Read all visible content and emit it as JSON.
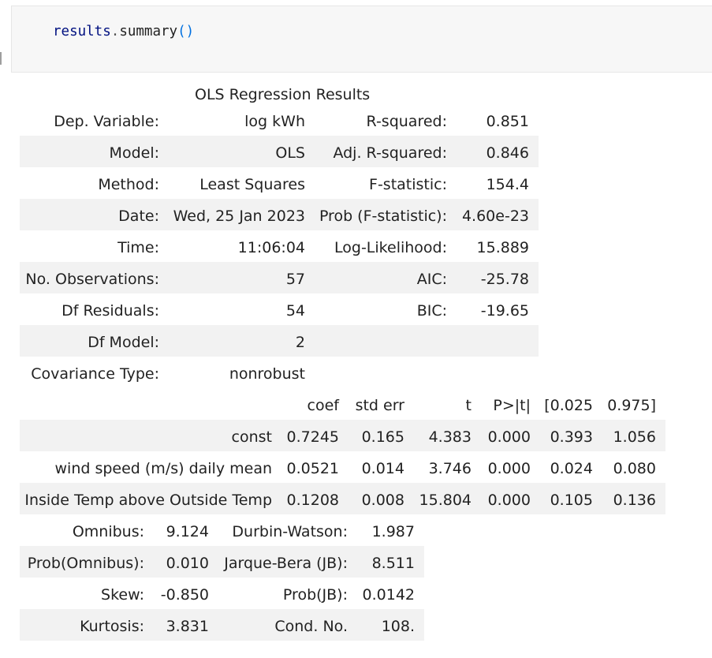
{
  "code_cell": {
    "object": "results",
    "dot": ".",
    "method": "summary",
    "parens": "()"
  },
  "header": {
    "title": "OLS Regression Results"
  },
  "summary": {
    "rows": [
      {
        "label": "Dep. Variable:",
        "value": "log kWh",
        "stat_label": "R-squared:",
        "stat_value": "0.851"
      },
      {
        "label": "Model:",
        "value": "OLS",
        "stat_label": "Adj. R-squared:",
        "stat_value": "0.846"
      },
      {
        "label": "Method:",
        "value": "Least Squares",
        "stat_label": "F-statistic:",
        "stat_value": "154.4"
      },
      {
        "label": "Date:",
        "value": "Wed, 25 Jan 2023",
        "stat_label": "Prob (F-statistic):",
        "stat_value": "4.60e-23"
      },
      {
        "label": "Time:",
        "value": "11:06:04",
        "stat_label": "Log-Likelihood:",
        "stat_value": "15.889"
      },
      {
        "label": "No. Observations:",
        "value": "57",
        "stat_label": "AIC:",
        "stat_value": "-25.78"
      },
      {
        "label": "Df Residuals:",
        "value": "54",
        "stat_label": "BIC:",
        "stat_value": "-19.65"
      },
      {
        "label": "Df Model:",
        "value": "2",
        "stat_label": "",
        "stat_value": ""
      },
      {
        "label": "Covariance Type:",
        "value": "nonrobust",
        "stat_label": "",
        "stat_value": ""
      }
    ]
  },
  "coef_table": {
    "headers": [
      "coef",
      "std err",
      "t",
      "P>|t|",
      "[0.025",
      "0.975]"
    ],
    "rows": [
      {
        "name": "const",
        "values": [
          "0.7245",
          "0.165",
          "4.383",
          "0.000",
          "0.393",
          "1.056"
        ]
      },
      {
        "name": "wind speed (m/s) daily mean",
        "values": [
          "0.0521",
          "0.014",
          "3.746",
          "0.000",
          "0.024",
          "0.080"
        ]
      },
      {
        "name": "Inside Temp above Outside Temp",
        "values": [
          "0.1208",
          "0.008",
          "15.804",
          "0.000",
          "0.105",
          "0.136"
        ]
      }
    ]
  },
  "diagnostics": {
    "rows": [
      {
        "label": "Omnibus:",
        "value": "9.124",
        "stat_label": "Durbin-Watson:",
        "stat_value": "1.987"
      },
      {
        "label": "Prob(Omnibus):",
        "value": "0.010",
        "stat_label": "Jarque-Bera (JB):",
        "stat_value": "8.511"
      },
      {
        "label": "Skew:",
        "value": "-0.850",
        "stat_label": "Prob(JB):",
        "stat_value": "0.0142"
      },
      {
        "label": "Kurtosis:",
        "value": "3.831",
        "stat_label": "Cond. No.",
        "stat_value": "108."
      }
    ]
  },
  "colors": {
    "band": "#f2f2f2",
    "code_bg": "#f7f7f7",
    "paren": "#0070e0",
    "identifier": "#001080"
  }
}
